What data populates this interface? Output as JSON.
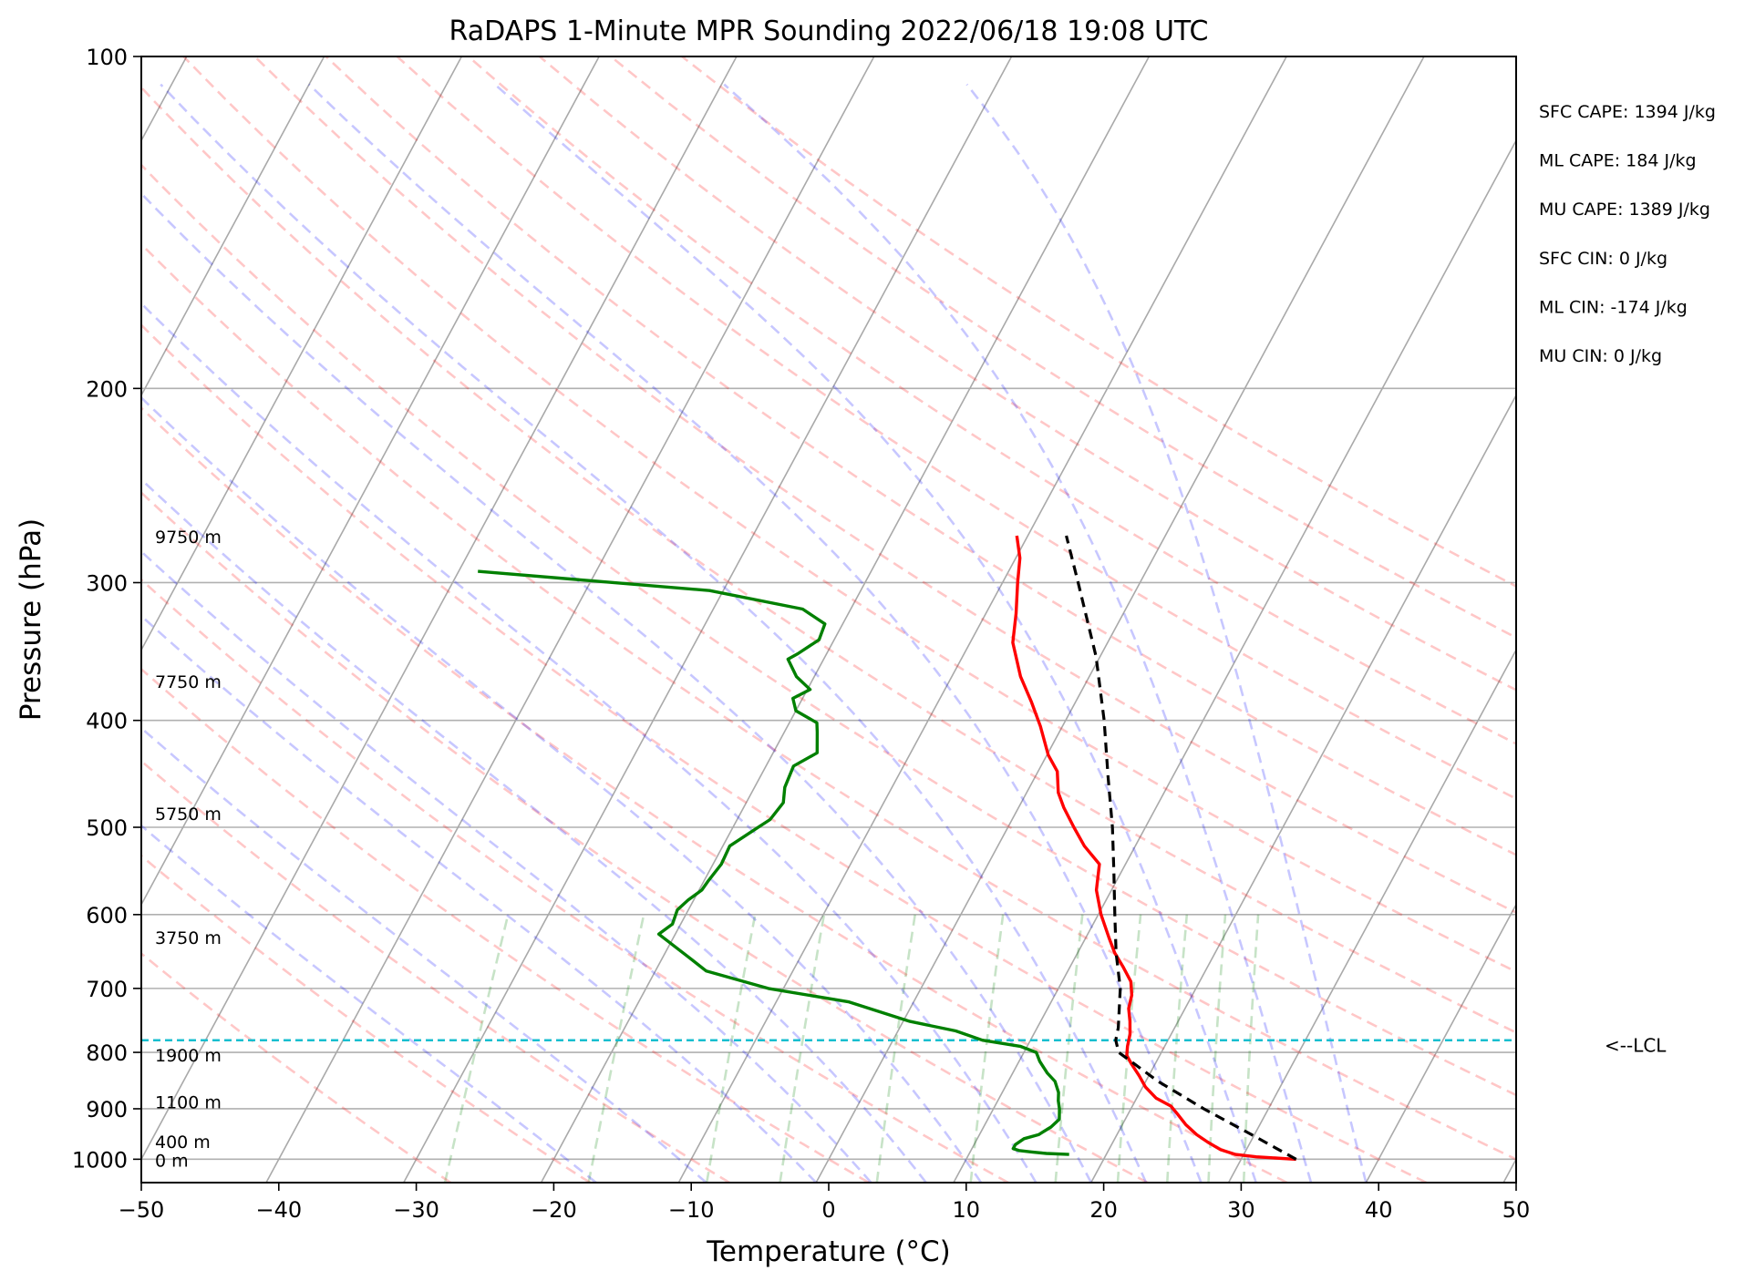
{
  "chart_data": {
    "type": "line",
    "chart_kind": "skew-t log-p",
    "title": "RaDAPS 1-Minute MPR Sounding 2022/06/18 19:08 UTC",
    "xlabel": "Temperature (°C)",
    "ylabel": "Pressure (hPa)",
    "xlim": [
      -50,
      50
    ],
    "ylim": [
      1050,
      100
    ],
    "y_scale": "log",
    "grid": true,
    "x_ticks": [
      -50,
      -40,
      -30,
      -20,
      -10,
      0,
      10,
      20,
      30,
      40,
      50
    ],
    "x_tick_labels": [
      "−50",
      "−40",
      "−30",
      "−20",
      "−10",
      "0",
      "10",
      "20",
      "30",
      "40",
      "50"
    ],
    "y_ticks": [
      100,
      200,
      300,
      400,
      500,
      600,
      700,
      800,
      900,
      1000
    ],
    "y_tick_labels": [
      "100",
      "200",
      "300",
      "400",
      "500",
      "600",
      "700",
      "800",
      "900",
      "1000"
    ],
    "skew_deg_per_log_decade": 43.3,
    "isotherm_values": [
      -140,
      -130,
      -120,
      -110,
      -100,
      -90,
      -80,
      -70,
      -60,
      -50,
      -40,
      -30,
      -20,
      -10,
      0,
      10,
      20,
      30,
      40,
      50
    ],
    "dry_adiabat_thetas_c": [
      -30,
      -20,
      -10,
      0,
      10,
      20,
      30,
      40,
      50,
      60,
      70,
      80,
      90,
      100,
      110,
      120,
      130,
      140,
      150
    ],
    "moist_adiabat_start_temps_c": [
      -16,
      -8,
      0,
      4,
      8,
      12,
      16,
      20,
      24,
      28,
      32,
      36,
      40
    ],
    "mixing_ratio_gkg": [
      0.4,
      1,
      2,
      3,
      5,
      8,
      12,
      16,
      20,
      24,
      28
    ],
    "mixing_ratio_top_hpa": 600,
    "lcl_pressure_hpa": 780,
    "lcl_label": "<--LCL",
    "height_labels": [
      {
        "label": "9750 m",
        "p": 272
      },
      {
        "label": "7750 m",
        "p": 368
      },
      {
        "label": "5750 m",
        "p": 485
      },
      {
        "label": "3750 m",
        "p": 628
      },
      {
        "label": "1900 m",
        "p": 803
      },
      {
        "label": "1100 m",
        "p": 886
      },
      {
        "label": "400 m",
        "p": 962
      },
      {
        "label": "0 m",
        "p": 1000
      }
    ],
    "indices": [
      "SFC CAPE: 1394 J/kg",
      "ML CAPE: 184 J/kg",
      "MU CAPE: 1389 J/kg",
      "SFC CIN: 0 J/kg",
      "ML CIN: -174 J/kg",
      "MU CIN: 0 J/kg"
    ],
    "series": [
      {
        "role": "temperature",
        "color": "#ff0000",
        "points": [
          [
            1000,
            34.0
          ],
          [
            995,
            31.0
          ],
          [
            990,
            29.4
          ],
          [
            980,
            28.1
          ],
          [
            965,
            26.9
          ],
          [
            950,
            25.8
          ],
          [
            930,
            24.6
          ],
          [
            910,
            23.6
          ],
          [
            895,
            22.8
          ],
          [
            880,
            21.4
          ],
          [
            860,
            20.2
          ],
          [
            840,
            19.3
          ],
          [
            820,
            18.3
          ],
          [
            805,
            17.6
          ],
          [
            790,
            17.3
          ],
          [
            770,
            17.0
          ],
          [
            750,
            16.5
          ],
          [
            730,
            15.9
          ],
          [
            710,
            15.6
          ],
          [
            690,
            15.0
          ],
          [
            670,
            13.9
          ],
          [
            650,
            12.7
          ],
          [
            630,
            11.7
          ],
          [
            600,
            10.2
          ],
          [
            570,
            8.9
          ],
          [
            540,
            8.1
          ],
          [
            520,
            6.3
          ],
          [
            500,
            4.8
          ],
          [
            480,
            3.3
          ],
          [
            465,
            2.3
          ],
          [
            445,
            1.4
          ],
          [
            430,
            0.1
          ],
          [
            405,
            -1.6
          ],
          [
            385,
            -3.2
          ],
          [
            365,
            -5.0
          ],
          [
            340,
            -6.9
          ],
          [
            320,
            -7.8
          ],
          [
            300,
            -8.9
          ],
          [
            285,
            -9.7
          ],
          [
            272,
            -10.8
          ]
        ]
      },
      {
        "role": "dewpoint",
        "color": "#008000",
        "points": [
          [
            990,
            17.3
          ],
          [
            988,
            15.6
          ],
          [
            985,
            14.5
          ],
          [
            982,
            13.5
          ],
          [
            978,
            13.0
          ],
          [
            970,
            13.0
          ],
          [
            958,
            13.4
          ],
          [
            950,
            14.3
          ],
          [
            935,
            14.9
          ],
          [
            920,
            15.2
          ],
          [
            900,
            14.8
          ],
          [
            885,
            14.4
          ],
          [
            870,
            14.1
          ],
          [
            850,
            13.4
          ],
          [
            835,
            12.5
          ],
          [
            815,
            11.5
          ],
          [
            800,
            10.9
          ],
          [
            790,
            9.5
          ],
          [
            780,
            6.5
          ],
          [
            765,
            4.2
          ],
          [
            750,
            0.5
          ],
          [
            720,
            -4.7
          ],
          [
            700,
            -11.1
          ],
          [
            675,
            -16.3
          ],
          [
            655,
            -18.2
          ],
          [
            625,
            -21.2
          ],
          [
            612,
            -20.6
          ],
          [
            594,
            -20.8
          ],
          [
            582,
            -20.4
          ],
          [
            570,
            -19.8
          ],
          [
            560,
            -19.7
          ],
          [
            540,
            -19.4
          ],
          [
            520,
            -19.5
          ],
          [
            502,
            -18.3
          ],
          [
            492,
            -17.6
          ],
          [
            475,
            -17.3
          ],
          [
            460,
            -17.8
          ],
          [
            440,
            -18.0
          ],
          [
            428,
            -16.8
          ],
          [
            410,
            -17.6
          ],
          [
            402,
            -18.0
          ],
          [
            392,
            -20.0
          ],
          [
            382,
            -20.7
          ],
          [
            375,
            -19.8
          ],
          [
            365,
            -21.3
          ],
          [
            352,
            -22.6
          ],
          [
            348,
            -22.1
          ],
          [
            338,
            -21.1
          ],
          [
            327,
            -21.3
          ],
          [
            317,
            -23.5
          ],
          [
            305,
            -31.0
          ],
          [
            293,
            -48.6
          ]
        ]
      },
      {
        "role": "parcel",
        "color": "#000000",
        "points": [
          [
            1000,
            34.0
          ],
          [
            950,
            29.8
          ],
          [
            900,
            25.3
          ],
          [
            850,
            20.9
          ],
          [
            800,
            16.9
          ],
          [
            780,
            16.2
          ],
          [
            760,
            15.9
          ],
          [
            700,
            14.5
          ],
          [
            650,
            12.8
          ],
          [
            600,
            11.2
          ],
          [
            550,
            9.5
          ],
          [
            500,
            7.6
          ],
          [
            450,
            5.3
          ],
          [
            400,
            2.8
          ],
          [
            350,
            -0.3
          ],
          [
            300,
            -4.5
          ],
          [
            272,
            -7.2
          ]
        ]
      }
    ]
  }
}
